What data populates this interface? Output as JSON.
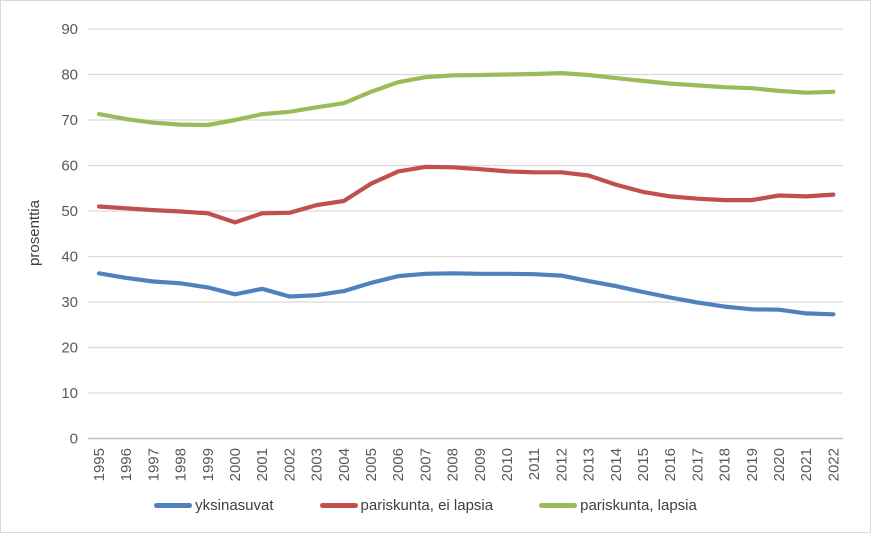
{
  "chart_data": {
    "type": "line",
    "title": "",
    "xlabel": "",
    "ylabel": "prosenttia",
    "ylim": [
      0,
      90
    ],
    "ytick_step": 10,
    "grid": true,
    "legend_position": "bottom",
    "categories": [
      "1995",
      "1996",
      "1997",
      "1998",
      "1999",
      "2000",
      "2001",
      "2002",
      "2003",
      "2004",
      "2005",
      "2006",
      "2007",
      "2008",
      "2009",
      "2010",
      "2011",
      "2012",
      "2013",
      "2014",
      "2015",
      "2016",
      "2017",
      "2018",
      "2019",
      "2020",
      "2021",
      "2022"
    ],
    "series": [
      {
        "name": "yksinasuvat",
        "color": "#4F81BD",
        "values": [
          36.3,
          35.3,
          34.5,
          34.1,
          33.2,
          31.7,
          32.9,
          31.2,
          31.5,
          32.4,
          34.2,
          35.7,
          36.2,
          36.3,
          36.2,
          36.2,
          36.1,
          35.8,
          34.6,
          33.5,
          32.2,
          31.0,
          29.9,
          29.0,
          28.4,
          28.3,
          27.5,
          27.3
        ]
      },
      {
        "name": "pariskunta, ei lapsia",
        "color": "#C0504D",
        "values": [
          51.0,
          50.6,
          50.2,
          49.9,
          49.5,
          47.5,
          49.5,
          49.6,
          51.3,
          52.2,
          56.0,
          58.7,
          59.7,
          59.6,
          59.2,
          58.7,
          58.5,
          58.5,
          57.8,
          55.8,
          54.2,
          53.2,
          52.7,
          52.4,
          52.4,
          53.4,
          53.2,
          53.6
        ]
      },
      {
        "name": "pariskunta, lapsia",
        "color": "#9BBB59",
        "values": [
          71.3,
          70.2,
          69.4,
          69.0,
          68.9,
          70.0,
          71.3,
          71.8,
          72.8,
          73.7,
          76.2,
          78.3,
          79.4,
          79.8,
          79.9,
          80.0,
          80.1,
          80.3,
          79.9,
          79.2,
          78.6,
          78.0,
          77.6,
          77.2,
          77.0,
          76.4,
          76.0,
          76.2
        ]
      }
    ]
  },
  "colors": {
    "gridline": "#D9D9D9",
    "axis_line": "#BFBFBF",
    "tick_text": "#595959",
    "label_text": "#404040",
    "border": "#D9D9D9",
    "background": "#FFFFFF"
  }
}
